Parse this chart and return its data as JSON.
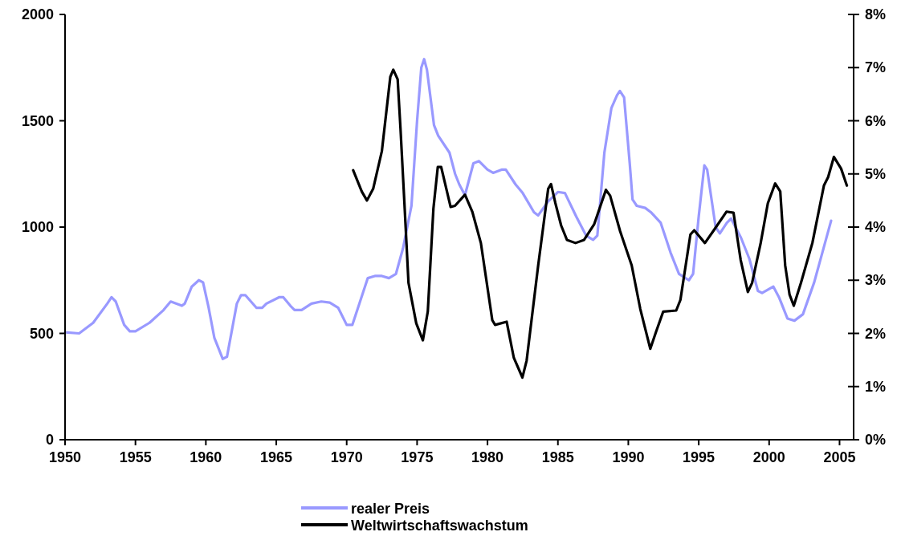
{
  "chart_data": {
    "type": "line",
    "xlim": [
      1950,
      2006
    ],
    "xticks": [
      1950,
      1955,
      1960,
      1965,
      1970,
      1975,
      1980,
      1985,
      1990,
      1995,
      2000,
      2005
    ],
    "ylim": [
      0,
      2000
    ],
    "yticks": [
      0,
      500,
      1000,
      1500,
      2000
    ],
    "y2lim": [
      0,
      8
    ],
    "y2ticks": [
      {
        "value": 0,
        "label": "0%"
      },
      {
        "value": 1,
        "label": "1%"
      },
      {
        "value": 2,
        "label": "2%"
      },
      {
        "value": 3,
        "label": "3%"
      },
      {
        "value": 4,
        "label": "4%"
      },
      {
        "value": 5,
        "label": "5%"
      },
      {
        "value": 6,
        "label": "6%"
      },
      {
        "value": 7,
        "label": "7%"
      },
      {
        "value": 8,
        "label": "8%"
      }
    ],
    "grid": false,
    "legend": "bottom",
    "marker": "none",
    "line_style": "solid",
    "series": [
      {
        "name": "realer Preis",
        "color": "#9999ff",
        "x": [
          1950,
          1951,
          1952,
          1953,
          1953.3,
          1953.6,
          1954.2,
          1954.6,
          1955,
          1956,
          1957,
          1957.5,
          1958.3,
          1958.5,
          1959,
          1959.5,
          1959.8,
          1960.2,
          1960.6,
          1961.2,
          1961.5,
          1962.2,
          1962.5,
          1962.8,
          1963.6,
          1964,
          1964.3,
          1965.2,
          1965.5,
          1966,
          1966.3,
          1966.8,
          1967.5,
          1968.2,
          1968.8,
          1969.4,
          1970,
          1970.4,
          1970.9,
          1971.5,
          1972,
          1972.5,
          1973,
          1973.5,
          1974,
          1974.6,
          1975,
          1975.3,
          1975.5,
          1975.7,
          1976.2,
          1976.5,
          1977.3,
          1977.7,
          1978,
          1978.4,
          1979,
          1979.4,
          1980,
          1980.4,
          1981,
          1981.3,
          1982,
          1982.5,
          1983.3,
          1983.6,
          1984.3,
          1985,
          1985.5,
          1986.3,
          1987,
          1987.5,
          1987.8,
          1988.3,
          1988.8,
          1989.2,
          1989.4,
          1989.7,
          1990.1,
          1990.3,
          1990.6,
          1991.2,
          1991.6,
          1992.3,
          1992.6,
          1993,
          1993.6,
          1994.3,
          1994.6,
          1995,
          1995.4,
          1995.6,
          1996.2,
          1996.5,
          1997,
          1997.3,
          1998,
          1998.6,
          1999.2,
          1999.5,
          2000.3,
          2000.7,
          2001.3,
          2001.8,
          2002.4,
          2003.2,
          2004.4
        ],
        "values": [
          505,
          500,
          550,
          640,
          670,
          650,
          540,
          510,
          510,
          550,
          610,
          650,
          630,
          640,
          720,
          750,
          740,
          620,
          480,
          380,
          390,
          640,
          680,
          680,
          620,
          620,
          640,
          670,
          670,
          630,
          610,
          610,
          640,
          650,
          645,
          620,
          540,
          540,
          640,
          760,
          770,
          770,
          760,
          780,
          900,
          1100,
          1500,
          1750,
          1790,
          1740,
          1480,
          1430,
          1350,
          1250,
          1200,
          1150,
          1300,
          1310,
          1270,
          1255,
          1270,
          1270,
          1200,
          1160,
          1070,
          1055,
          1120,
          1165,
          1160,
          1050,
          960,
          940,
          960,
          1350,
          1560,
          1620,
          1640,
          1610,
          1300,
          1130,
          1100,
          1090,
          1070,
          1020,
          960,
          880,
          780,
          750,
          780,
          1050,
          1290,
          1270,
          1000,
          970,
          1020,
          1040,
          950,
          850,
          700,
          690,
          720,
          670,
          570,
          560,
          590,
          740,
          1030
        ]
      },
      {
        "name": "Weltwirtschaftswachstum",
        "color": "#000000",
        "axis": "y2",
        "x": [
          1970.46,
          1971.07,
          1971.44,
          1971.88,
          1972.5,
          1973.1,
          1973.31,
          1973.62,
          1973.82,
          1974.12,
          1974.39,
          1974.94,
          1975.41,
          1975.76,
          1976.16,
          1976.47,
          1976.71,
          1977.38,
          1977.69,
          1978.4,
          1978.92,
          1979.53,
          1980.34,
          1980.54,
          1981.36,
          1981.87,
          1982.48,
          1982.78,
          1983.6,
          1984.31,
          1984.51,
          1984.82,
          1985.23,
          1985.64,
          1986.25,
          1986.86,
          1987.57,
          1988.41,
          1988.71,
          1989.42,
          1990.24,
          1990.85,
          1991.56,
          1991.97,
          1992.48,
          1993.4,
          1993.7,
          1994.41,
          1994.68,
          1995.44,
          1996.15,
          1996.97,
          1997.47,
          1997.98,
          1998.49,
          1998.79,
          1999.4,
          1999.91,
          2000.43,
          2000.79,
          2001.14,
          2001.45,
          2001.75,
          2002.26,
          2003.07,
          2003.89,
          2004.19,
          2004.6,
          2005.11,
          2005.52
        ],
        "values": [
          5.07,
          4.67,
          4.5,
          4.72,
          5.43,
          6.83,
          6.96,
          6.78,
          5.86,
          4.35,
          2.95,
          2.19,
          1.87,
          2.41,
          4.35,
          5.13,
          5.13,
          4.38,
          4.4,
          4.61,
          4.29,
          3.7,
          2.25,
          2.16,
          2.22,
          1.54,
          1.17,
          1.49,
          3.28,
          4.72,
          4.81,
          4.45,
          4.03,
          3.76,
          3.7,
          3.76,
          4.05,
          4.7,
          4.59,
          3.92,
          3.28,
          2.46,
          1.71,
          2.03,
          2.41,
          2.43,
          2.63,
          3.86,
          3.94,
          3.7,
          3.97,
          4.29,
          4.27,
          3.38,
          2.78,
          2.95,
          3.7,
          4.45,
          4.82,
          4.67,
          3.28,
          2.73,
          2.52,
          2.95,
          3.7,
          4.78,
          4.94,
          5.32,
          5.1,
          4.78
        ]
      }
    ]
  }
}
